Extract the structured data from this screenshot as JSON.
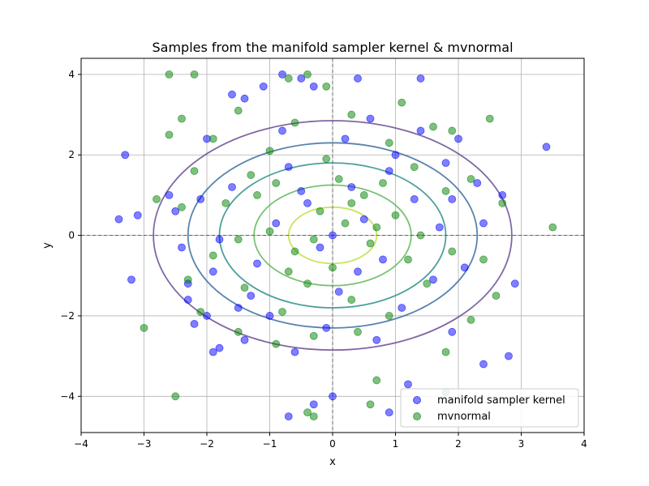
{
  "chart_data": {
    "type": "scatter",
    "title": "Samples from the manifold sampler kernel & mvnormal",
    "xlabel": "x",
    "ylabel": "y",
    "xlim": [
      -4,
      4
    ],
    "ylim": [
      -4.9,
      4.4
    ],
    "xticks": [
      "−4",
      "−3",
      "−2",
      "−1",
      "0",
      "1",
      "2",
      "3",
      "4"
    ],
    "yticks": [
      "−4",
      "−2",
      "0",
      "2",
      "4"
    ],
    "grid": true,
    "legend_position": "lower-right",
    "series": [
      {
        "name": "manifold sampler kernel",
        "color": "#0000ff",
        "alpha": 0.5,
        "points": [
          [
            -3.3,
            2.0
          ],
          [
            -3.4,
            0.4
          ],
          [
            -3.1,
            0.5
          ],
          [
            -3.2,
            -1.1
          ],
          [
            -2.5,
            0.6
          ],
          [
            -2.6,
            1.0
          ],
          [
            -2.3,
            -1.6
          ],
          [
            -2.2,
            -2.2
          ],
          [
            -1.9,
            -2.9
          ],
          [
            -1.8,
            -2.8
          ],
          [
            -1.6,
            3.5
          ],
          [
            -1.4,
            3.4
          ],
          [
            -1.1,
            3.7
          ],
          [
            -0.8,
            4.0
          ],
          [
            -0.5,
            3.9
          ],
          [
            -0.3,
            3.7
          ],
          [
            0.4,
            3.9
          ],
          [
            1.4,
            3.9
          ],
          [
            3.4,
            2.2
          ],
          [
            2.7,
            1.0
          ],
          [
            2.9,
            -1.2
          ],
          [
            2.8,
            -3.0
          ],
          [
            2.4,
            -3.2
          ],
          [
            1.2,
            -3.7
          ],
          [
            0.0,
            -4.0
          ],
          [
            -0.3,
            -4.2
          ],
          [
            -0.7,
            -4.5
          ],
          [
            0.9,
            -4.4
          ],
          [
            2.0,
            2.4
          ],
          [
            1.9,
            -2.4
          ],
          [
            -2.0,
            2.4
          ],
          [
            -2.0,
            -2.0
          ],
          [
            1.8,
            1.8
          ],
          [
            -1.5,
            -1.8
          ],
          [
            0.6,
            2.9
          ],
          [
            -0.6,
            -2.9
          ],
          [
            2.4,
            0.3
          ],
          [
            -2.4,
            -0.3
          ],
          [
            1.0,
            2.0
          ],
          [
            -1.0,
            -2.0
          ],
          [
            0.3,
            1.2
          ],
          [
            -0.4,
            0.8
          ],
          [
            0.8,
            -0.6
          ],
          [
            -0.9,
            0.3
          ],
          [
            1.3,
            0.9
          ],
          [
            -1.2,
            -0.7
          ],
          [
            0.1,
            -1.4
          ],
          [
            0.5,
            0.4
          ],
          [
            -0.2,
            -0.3
          ],
          [
            1.6,
            -1.1
          ],
          [
            -1.6,
            1.2
          ],
          [
            0.9,
            1.6
          ],
          [
            -0.7,
            1.7
          ],
          [
            1.1,
            -1.8
          ],
          [
            -1.3,
            -1.5
          ],
          [
            2.1,
            -0.8
          ],
          [
            -2.1,
            0.9
          ],
          [
            0.2,
            2.4
          ],
          [
            -0.1,
            -2.3
          ],
          [
            1.7,
            0.2
          ],
          [
            -1.8,
            -0.1
          ],
          [
            0.7,
            -2.6
          ],
          [
            -0.8,
            2.6
          ],
          [
            2.3,
            1.3
          ],
          [
            -2.3,
            -1.2
          ],
          [
            1.4,
            2.6
          ],
          [
            -1.4,
            -2.6
          ],
          [
            0.0,
            0.0
          ],
          [
            0.4,
            -0.9
          ],
          [
            -0.5,
            1.1
          ],
          [
            1.9,
            0.9
          ],
          [
            -1.9,
            -0.9
          ]
        ]
      },
      {
        "name": "mvnormal",
        "color": "#008000",
        "alpha": 0.5,
        "points": [
          [
            -2.6,
            4.0
          ],
          [
            -2.2,
            4.0
          ],
          [
            -0.7,
            3.9
          ],
          [
            -0.4,
            4.0
          ],
          [
            -0.1,
            3.7
          ],
          [
            1.1,
            3.3
          ],
          [
            -2.4,
            2.9
          ],
          [
            -2.6,
            2.5
          ],
          [
            -1.5,
            3.1
          ],
          [
            2.5,
            2.9
          ],
          [
            -2.8,
            0.9
          ],
          [
            -2.4,
            0.7
          ],
          [
            -3.0,
            -2.3
          ],
          [
            -2.5,
            -4.0
          ],
          [
            3.5,
            0.2
          ],
          [
            0.6,
            -4.2
          ],
          [
            -0.3,
            -4.5
          ],
          [
            -0.4,
            -4.4
          ],
          [
            0.7,
            -3.6
          ],
          [
            1.8,
            -3.9
          ],
          [
            1.8,
            -2.9
          ],
          [
            2.2,
            -2.1
          ],
          [
            2.6,
            -1.5
          ],
          [
            2.4,
            -0.6
          ],
          [
            2.7,
            0.8
          ],
          [
            2.2,
            1.4
          ],
          [
            1.9,
            2.6
          ],
          [
            1.6,
            2.7
          ],
          [
            -1.9,
            2.4
          ],
          [
            -2.2,
            1.6
          ],
          [
            -2.3,
            -1.1
          ],
          [
            -2.1,
            -1.9
          ],
          [
            -1.5,
            -2.4
          ],
          [
            -0.9,
            -2.7
          ],
          [
            0.3,
            3.0
          ],
          [
            -0.6,
            2.8
          ],
          [
            0.9,
            2.3
          ],
          [
            -1.0,
            2.1
          ],
          [
            1.3,
            1.7
          ],
          [
            -1.3,
            1.5
          ],
          [
            1.8,
            1.1
          ],
          [
            -1.7,
            0.8
          ],
          [
            1.9,
            -0.4
          ],
          [
            -1.9,
            -0.5
          ],
          [
            1.5,
            -1.2
          ],
          [
            -1.4,
            -1.3
          ],
          [
            0.9,
            -2.0
          ],
          [
            -0.8,
            -1.9
          ],
          [
            0.4,
            -2.4
          ],
          [
            -0.3,
            -2.5
          ],
          [
            0.2,
            0.3
          ],
          [
            -0.2,
            0.6
          ],
          [
            0.6,
            -0.2
          ],
          [
            -0.6,
            -0.4
          ],
          [
            0.1,
            1.4
          ],
          [
            -0.4,
            -1.2
          ],
          [
            1.0,
            0.5
          ],
          [
            -1.0,
            0.1
          ],
          [
            0.5,
            1.0
          ],
          [
            -0.7,
            -0.9
          ],
          [
            1.2,
            -0.6
          ],
          [
            -1.2,
            1.0
          ],
          [
            0.3,
            -1.6
          ],
          [
            -0.1,
            1.9
          ],
          [
            0.8,
            1.3
          ],
          [
            -0.9,
            1.3
          ],
          [
            1.4,
            0.0
          ],
          [
            -1.5,
            -0.1
          ],
          [
            0.0,
            -0.8
          ],
          [
            0.3,
            0.8
          ],
          [
            -0.3,
            -0.1
          ],
          [
            0.7,
            0.2
          ]
        ]
      }
    ],
    "contours": {
      "center": [
        0,
        0
      ],
      "radii": [
        2.85,
        2.3,
        1.8,
        1.25,
        0.7
      ],
      "colors": [
        "#6a4c93",
        "#3b6fa0",
        "#2f8f8a",
        "#5fb85a",
        "#bde040"
      ]
    }
  }
}
